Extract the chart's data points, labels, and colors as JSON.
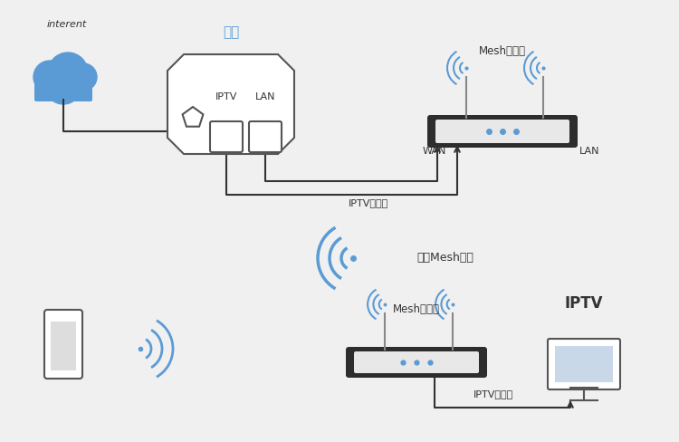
{
  "bg_color": "#f0f0f0",
  "cloud_color": "#5b9bd5",
  "router_body_color": "#2d2d2d",
  "router_light_color": "#5b9bd5",
  "modem_outline_color": "#555555",
  "line_color": "#333333",
  "wifi_color": "#5b9bd5",
  "text_color": "#333333",
  "label_color": "#5b9bd5",
  "internet_label": "interent",
  "modem_label": "光猫",
  "mesh_main_label": "Mesh主路由",
  "mesh_sub_label": "Mesh子路由",
  "wan_label": "WAN",
  "lan_label": "LAN",
  "iptv_port_label": "IPTV",
  "lan_port_label": "LAN",
  "iptv_up_label": "IPTV上联口",
  "iptv_down_label": "IPTV下联口",
  "wireless_mesh_label": "无线Mesh组网",
  "iptv_tv_label": "IPTV"
}
